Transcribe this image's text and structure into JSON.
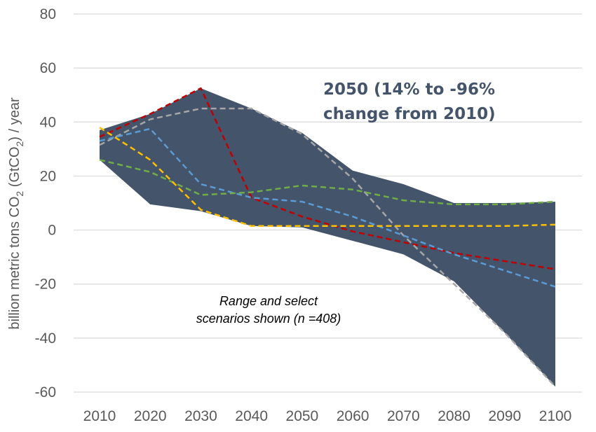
{
  "chart_data": {
    "type": "area",
    "x": [
      2010,
      2020,
      2030,
      2040,
      2050,
      2060,
      2070,
      2080,
      2090,
      2100
    ],
    "x_tick_labels": [
      "2010",
      "2020",
      "2030",
      "2040",
      "2050",
      "2060",
      "2070",
      "2080",
      "2090",
      "2100"
    ],
    "y_tick_labels": [
      "80",
      "60",
      "40",
      "20",
      "0",
      "-20",
      "-40",
      "-60"
    ],
    "ylim": [
      -60,
      80
    ],
    "ylabel": {
      "pre": "billion metric tons CO",
      "sub1": "2",
      "mid": " (GtCO",
      "sub2": "2",
      "post": ") / year"
    },
    "grid": true,
    "range": {
      "color": "#44546a",
      "upper": [
        37,
        43,
        52.5,
        45,
        36,
        22,
        17,
        10,
        10,
        10.5
      ],
      "lower": [
        26,
        9.5,
        7,
        1.5,
        1,
        -4,
        -9,
        -19,
        -38,
        -58
      ]
    },
    "series": [
      {
        "color": "#c00000",
        "values": [
          34.5,
          43,
          52.5,
          12,
          5,
          -0.5,
          -4.5,
          -8.5,
          -11.5,
          -14.5
        ]
      },
      {
        "color": "#a6a6a6",
        "values": [
          31.5,
          41,
          45,
          45,
          35.5,
          19,
          -2,
          -20,
          -38,
          -58
        ]
      },
      {
        "color": "#5b9bd5",
        "values": [
          33,
          37.5,
          17,
          12,
          10.5,
          5,
          -2,
          -9,
          -15,
          -21
        ]
      },
      {
        "color": "#70ad47",
        "values": [
          26,
          21.5,
          13,
          14,
          16.5,
          15,
          11,
          9.5,
          9.5,
          10.5
        ]
      },
      {
        "color": "#ffc000",
        "values": [
          38,
          26,
          7.5,
          1.5,
          1.5,
          1.5,
          1.5,
          1.5,
          1.5,
          2
        ]
      }
    ],
    "annotations": {
      "range_line1": "2050 (14% to -96%",
      "range_line2": "change from 2010)",
      "note_line1": "Range and select",
      "note_line2": "scenarios shown (n =408)"
    }
  }
}
